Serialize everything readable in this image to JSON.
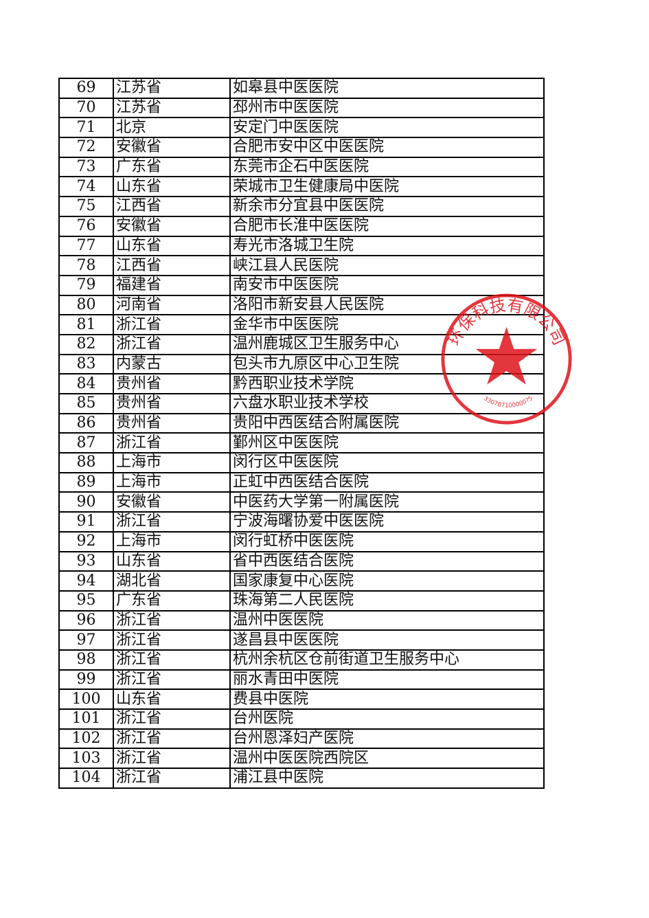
{
  "table": {
    "rows": [
      {
        "no": "69",
        "province": "江苏省",
        "name": "如皋县中医医院"
      },
      {
        "no": "70",
        "province": "江苏省",
        "name": "邳州市中医医院"
      },
      {
        "no": "71",
        "province": "北京",
        "name": "安定门中医医院"
      },
      {
        "no": "72",
        "province": "安徽省",
        "name": "合肥市安中区中医医院"
      },
      {
        "no": "73",
        "province": "广东省",
        "name": "东莞市企石中医医院"
      },
      {
        "no": "74",
        "province": "山东省",
        "name": "荣城市卫生健康局中医院"
      },
      {
        "no": "75",
        "province": "江西省",
        "name": "新余市分宜县中医医院"
      },
      {
        "no": "76",
        "province": "安徽省",
        "name": "合肥市长淮中医医院"
      },
      {
        "no": "77",
        "province": "山东省",
        "name": "寿光市洛城卫生院"
      },
      {
        "no": "78",
        "province": "江西省",
        "name": "峡江县人民医院"
      },
      {
        "no": "79",
        "province": "福建省",
        "name": "南安市中医医院"
      },
      {
        "no": "80",
        "province": "河南省",
        "name": "洛阳市新安县人民医院"
      },
      {
        "no": "81",
        "province": "浙江省",
        "name": "金华市中医医院"
      },
      {
        "no": "82",
        "province": "浙江省",
        "name": "温州鹿城区卫生服务中心"
      },
      {
        "no": "83",
        "province": "内蒙古",
        "name": "包头市九原区中心卫生院"
      },
      {
        "no": "84",
        "province": "贵州省",
        "name": "黔西职业技术学院"
      },
      {
        "no": "85",
        "province": "贵州省",
        "name": "六盘水职业技术学校"
      },
      {
        "no": "86",
        "province": "贵州省",
        "name": "贵阳中西医结合附属医院"
      },
      {
        "no": "87",
        "province": "浙江省",
        "name": "鄞州区中医医院"
      },
      {
        "no": "88",
        "province": "上海市",
        "name": "闵行区中医医院"
      },
      {
        "no": "89",
        "province": "上海市",
        "name": "正虹中西医结合医院"
      },
      {
        "no": "90",
        "province": "安徽省",
        "name": "中医药大学第一附属医院"
      },
      {
        "no": "91",
        "province": "浙江省",
        "name": "宁波海曙协爱中医医院"
      },
      {
        "no": "92",
        "province": "上海市",
        "name": "闵行虹桥中医医院"
      },
      {
        "no": "93",
        "province": "山东省",
        "name": "省中西医结合医院"
      },
      {
        "no": "94",
        "province": "湖北省",
        "name": "国家康复中心医院"
      },
      {
        "no": "95",
        "province": "广东省",
        "name": "珠海第二人民医院"
      },
      {
        "no": "96",
        "province": "浙江省",
        "name": "温州中医医院"
      },
      {
        "no": "97",
        "province": "浙江省",
        "name": "遂昌县中医医院"
      },
      {
        "no": "98",
        "province": "浙江省",
        "name": "杭州余杭区仓前街道卫生服务中心"
      },
      {
        "no": "99",
        "province": "浙江省",
        "name": "丽水青田中医院"
      },
      {
        "no": "100",
        "province": "山东省",
        "name": "费县中医院"
      },
      {
        "no": "101",
        "province": "浙江省",
        "name": "台州医院"
      },
      {
        "no": "102",
        "province": "浙江省",
        "name": "台州恩泽妇产医院"
      },
      {
        "no": "103",
        "province": "浙江省",
        "name": "温州中医医院西院区"
      },
      {
        "no": "104",
        "province": "浙江省",
        "name": "浦江县中医院"
      }
    ]
  },
  "seal": {
    "text": "环保科技有限公司",
    "code": "330787100000?5",
    "color": "#e0141c"
  }
}
